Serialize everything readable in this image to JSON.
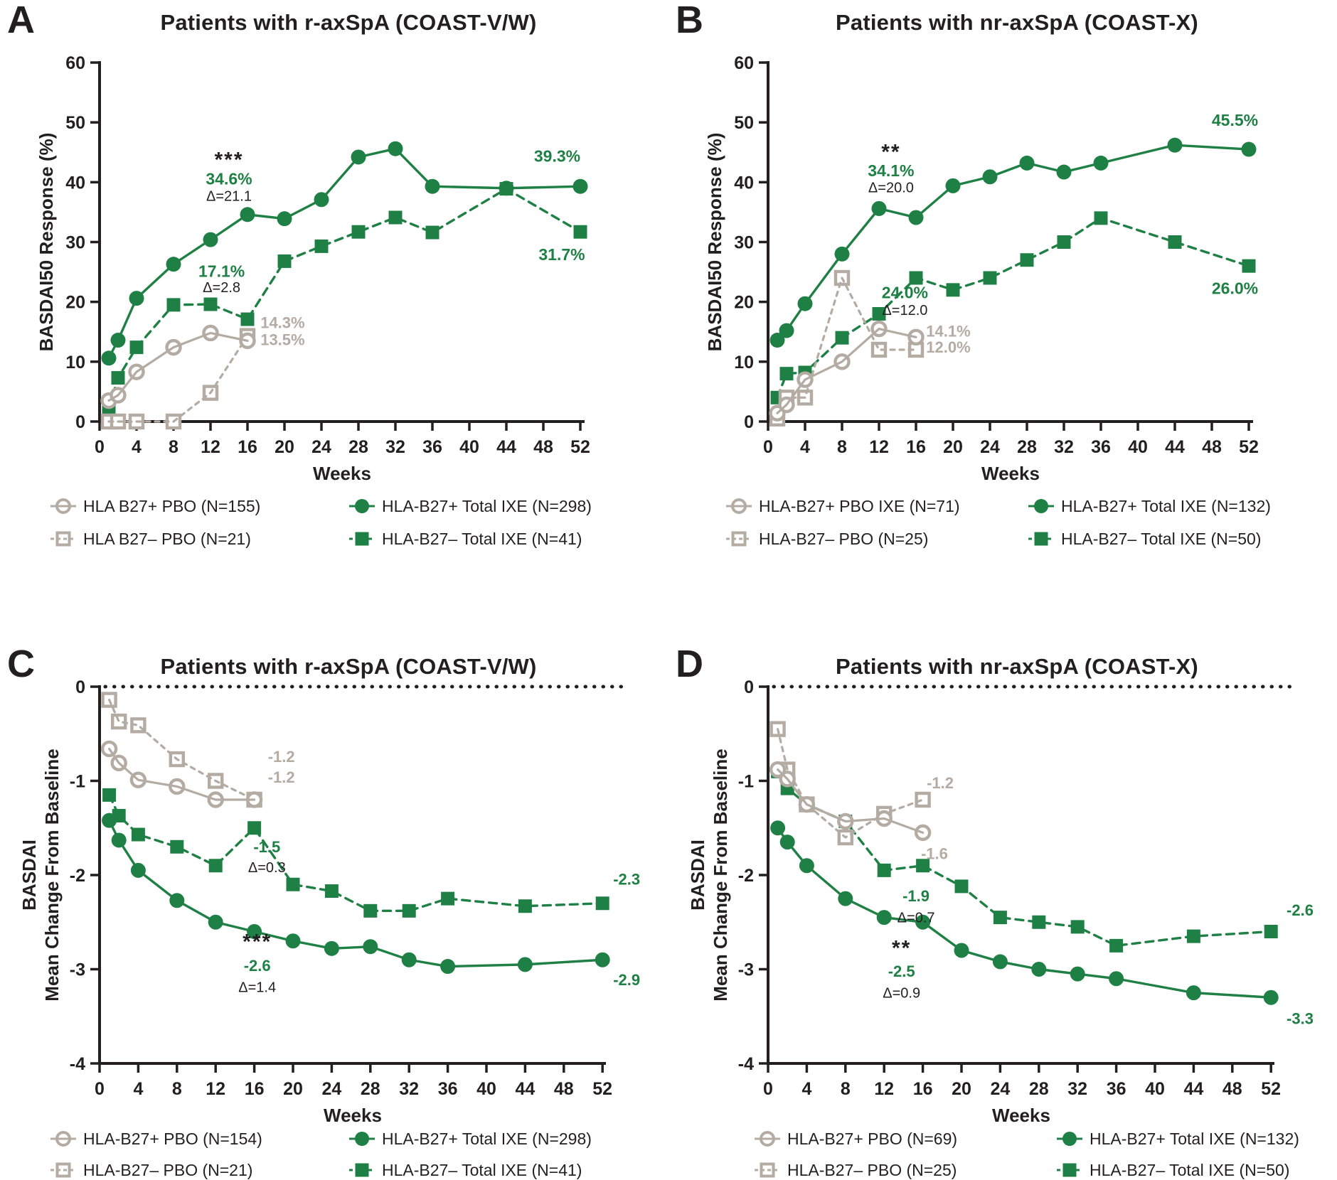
{
  "colors": {
    "green": "#1f8045",
    "gray": "#b4aba3",
    "black": "#231f20",
    "white": "#ffffff"
  },
  "chart_data": [
    {
      "type": "line",
      "panel": "A",
      "title": "Patients with r-axSpA (COAST-V/W)",
      "xlabel": "Weeks",
      "ylabel_lines": [
        "BASDAI50 Response (%)"
      ],
      "ylim": [
        0,
        60
      ],
      "yticks": [
        0,
        10,
        20,
        30,
        40,
        50,
        60
      ],
      "xticks": [
        0,
        4,
        8,
        12,
        16,
        20,
        24,
        28,
        32,
        36,
        40,
        44,
        48,
        52
      ],
      "zero_line_dotted": false,
      "legend_position": "below",
      "series": [
        {
          "name": "HLA B27+ PBO (N=155)",
          "style": "pbo_circle",
          "x": [
            1,
            2,
            4,
            8,
            12,
            16
          ],
          "y": [
            3.5,
            4.4,
            8.3,
            12.4,
            14.8,
            13.5
          ]
        },
        {
          "name": "HLA B27– PBO (N=21)",
          "style": "pbo_square",
          "x": [
            1,
            2,
            4,
            8,
            12,
            16
          ],
          "y": [
            0,
            0,
            0,
            0,
            4.8,
            14.3
          ]
        },
        {
          "name": "HLA-B27+ Total IXE (N=298)",
          "style": "ixe_circle",
          "x": [
            1,
            2,
            4,
            8,
            12,
            16,
            20,
            24,
            28,
            32,
            36,
            44,
            52
          ],
          "y": [
            10.6,
            13.6,
            20.6,
            26.3,
            30.4,
            34.6,
            33.9,
            37.1,
            44.2,
            45.6,
            39.3,
            39.0,
            39.3
          ]
        },
        {
          "name": "HLA-B27– Total IXE (N=41)",
          "style": "ixe_square",
          "x": [
            1,
            2,
            4,
            8,
            12,
            16,
            20,
            24,
            28,
            32,
            36,
            44,
            52
          ],
          "y": [
            2.2,
            7.3,
            12.4,
            19.5,
            19.6,
            17.1,
            26.8,
            29.3,
            31.7,
            34.1,
            31.6,
            38.9,
            31.7
          ]
        }
      ],
      "annotations": [
        {
          "text": "***",
          "x": 14,
          "y": 42.6,
          "color": "black",
          "bold": true,
          "size": 30
        },
        {
          "text": "34.6%",
          "x": 14,
          "y": 39.6,
          "color": "green",
          "bold": true,
          "size": 23
        },
        {
          "text": "Δ=21.1",
          "x": 14,
          "y": 36.9,
          "color": "black",
          "bold": false,
          "size": 20
        },
        {
          "text": "17.1%",
          "x": 13.2,
          "y": 24.2,
          "color": "green",
          "bold": true,
          "size": 23
        },
        {
          "text": "Δ=2.8",
          "x": 13.2,
          "y": 21.6,
          "color": "black",
          "bold": false,
          "size": 20
        },
        {
          "text": "14.3%",
          "x": 19.8,
          "y": 15.6,
          "color": "gray",
          "bold": true,
          "size": 22
        },
        {
          "text": "13.5%",
          "x": 19.8,
          "y": 12.8,
          "color": "gray",
          "bold": true,
          "size": 22
        },
        {
          "text": "39.3%",
          "x": 49.5,
          "y": 43.4,
          "color": "green",
          "bold": true,
          "size": 23
        },
        {
          "text": "31.7%",
          "x": 50.0,
          "y": 27.0,
          "color": "green",
          "bold": true,
          "size": 23
        }
      ]
    },
    {
      "type": "line",
      "panel": "B",
      "title": "Patients with nr-axSpA (COAST-X)",
      "xlabel": "Weeks",
      "ylabel_lines": [
        "BASDAI50 Response (%)"
      ],
      "ylim": [
        0,
        60
      ],
      "yticks": [
        0,
        10,
        20,
        30,
        40,
        50,
        60
      ],
      "xticks": [
        0,
        4,
        8,
        12,
        16,
        20,
        24,
        28,
        32,
        36,
        40,
        44,
        48,
        52
      ],
      "zero_line_dotted": false,
      "legend_position": "below",
      "series": [
        {
          "name": "HLA-B27+ PBO IXE (N=71)",
          "style": "pbo_circle",
          "x": [
            1,
            2,
            4,
            8,
            12,
            16
          ],
          "y": [
            1.4,
            2.8,
            7.0,
            10.0,
            15.5,
            14.1
          ]
        },
        {
          "name": "HLA-B27– PBO (N=25)",
          "style": "pbo_square",
          "x": [
            1,
            2,
            4,
            8,
            12,
            16
          ],
          "y": [
            0.5,
            4.0,
            4.0,
            24.0,
            12.0,
            12.0
          ]
        },
        {
          "name": "HLA-B27+ Total IXE (N=132)",
          "style": "ixe_circle",
          "x": [
            1,
            2,
            4,
            8,
            12,
            16,
            20,
            24,
            28,
            32,
            36,
            44,
            52
          ],
          "y": [
            13.6,
            15.2,
            19.7,
            28.0,
            35.6,
            34.1,
            39.4,
            40.9,
            43.2,
            41.7,
            43.2,
            46.2,
            45.5
          ]
        },
        {
          "name": "HLA-B27– Total IXE (N=50)",
          "style": "ixe_square",
          "x": [
            1,
            2,
            4,
            8,
            12,
            16,
            20,
            24,
            28,
            32,
            36,
            44,
            52
          ],
          "y": [
            4.0,
            8.0,
            8.2,
            14.0,
            18.0,
            24.0,
            22.0,
            24.0,
            27.0,
            30.0,
            34.0,
            30.0,
            26.0
          ]
        }
      ],
      "annotations": [
        {
          "text": "**",
          "x": 13.3,
          "y": 43.9,
          "color": "black",
          "bold": true,
          "size": 30
        },
        {
          "text": "34.1%",
          "x": 13.3,
          "y": 41.0,
          "color": "green",
          "bold": true,
          "size": 23
        },
        {
          "text": "Δ=20.0",
          "x": 13.3,
          "y": 38.3,
          "color": "black",
          "bold": false,
          "size": 20
        },
        {
          "text": "24.0%",
          "x": 14.8,
          "y": 20.6,
          "color": "green",
          "bold": true,
          "size": 23
        },
        {
          "text": "Δ=12.0",
          "x": 14.8,
          "y": 17.8,
          "color": "black",
          "bold": false,
          "size": 20
        },
        {
          "text": "14.1%",
          "x": 19.5,
          "y": 14.2,
          "color": "gray",
          "bold": true,
          "size": 22
        },
        {
          "text": "12.0%",
          "x": 19.5,
          "y": 11.5,
          "color": "gray",
          "bold": true,
          "size": 22
        },
        {
          "text": "45.5%",
          "x": 50.5,
          "y": 49.4,
          "color": "green",
          "bold": true,
          "size": 23
        },
        {
          "text": "26.0%",
          "x": 50.5,
          "y": 21.3,
          "color": "green",
          "bold": true,
          "size": 23
        }
      ]
    },
    {
      "type": "line",
      "panel": "C",
      "title": "Patients with r-axSpA (COAST-V/W)",
      "xlabel": "Weeks",
      "ylabel_lines": [
        "BASDAI",
        "Mean Change From Baseline"
      ],
      "ylim": [
        -4,
        0
      ],
      "yticks": [
        0,
        -1,
        -2,
        -3,
        -4
      ],
      "xticks": [
        0,
        4,
        8,
        12,
        16,
        20,
        24,
        28,
        32,
        36,
        40,
        44,
        48,
        52
      ],
      "zero_line_dotted": true,
      "legend_position": "below",
      "series": [
        {
          "name": "HLA-B27+ PBO (N=154)",
          "style": "pbo_circle",
          "x": [
            1,
            2,
            4,
            8,
            12,
            16
          ],
          "y": [
            -0.66,
            -0.81,
            -0.99,
            -1.06,
            -1.2,
            -1.2
          ]
        },
        {
          "name": "HLA-B27– PBO (N=21)",
          "style": "pbo_square",
          "x": [
            1,
            2,
            4,
            8,
            12,
            16
          ],
          "y": [
            -0.14,
            -0.37,
            -0.41,
            -0.77,
            -1.0,
            -1.2
          ]
        },
        {
          "name": "HLA-B27+ Total IXE (N=298)",
          "style": "ixe_circle",
          "x": [
            1,
            2,
            4,
            8,
            12,
            16,
            20,
            24,
            28,
            32,
            36,
            44,
            52
          ],
          "y": [
            -1.42,
            -1.63,
            -1.95,
            -2.27,
            -2.5,
            -2.6,
            -2.7,
            -2.78,
            -2.76,
            -2.9,
            -2.97,
            -2.95,
            -2.9
          ]
        },
        {
          "name": "HLA-B27– Total IXE (N=41)",
          "style": "ixe_square",
          "x": [
            1,
            2,
            4,
            8,
            12,
            16,
            20,
            24,
            28,
            32,
            36,
            44,
            52
          ],
          "y": [
            -1.15,
            -1.37,
            -1.57,
            -1.7,
            -1.9,
            -1.5,
            -2.1,
            -2.17,
            -2.38,
            -2.38,
            -2.25,
            -2.33,
            -2.3
          ]
        }
      ],
      "annotations": [
        {
          "text": "-1.2",
          "x": 18.8,
          "y": -0.8,
          "color": "gray",
          "bold": true,
          "size": 22
        },
        {
          "text": "-1.2",
          "x": 18.8,
          "y": -1.02,
          "color": "gray",
          "bold": true,
          "size": 22
        },
        {
          "text": "-1.5",
          "x": 17.3,
          "y": -1.76,
          "color": "green",
          "bold": true,
          "size": 22
        },
        {
          "text": "Δ=0.3",
          "x": 17.3,
          "y": -1.97,
          "color": "black",
          "bold": false,
          "size": 20
        },
        {
          "text": "***",
          "x": 16.3,
          "y": -2.78,
          "color": "black",
          "bold": true,
          "size": 30
        },
        {
          "text": "-2.6",
          "x": 16.3,
          "y": -3.02,
          "color": "green",
          "bold": true,
          "size": 22
        },
        {
          "text": "Δ=1.4",
          "x": 16.3,
          "y": -3.24,
          "color": "black",
          "bold": false,
          "size": 20
        },
        {
          "text": "-2.3",
          "x": 54.5,
          "y": -2.1,
          "color": "green",
          "bold": true,
          "size": 22
        },
        {
          "text": "-2.9",
          "x": 54.5,
          "y": -3.17,
          "color": "green",
          "bold": true,
          "size": 22
        }
      ]
    },
    {
      "type": "line",
      "panel": "D",
      "title": "Patients with nr-axSpA (COAST-X)",
      "xlabel": "Weeks",
      "ylabel_lines": [
        "BASDAI",
        "Mean Change From Baseline"
      ],
      "ylim": [
        -4,
        0
      ],
      "yticks": [
        0,
        -1,
        -2,
        -3,
        -4
      ],
      "xticks": [
        0,
        4,
        8,
        12,
        16,
        20,
        24,
        28,
        32,
        36,
        40,
        44,
        48,
        52
      ],
      "zero_line_dotted": true,
      "legend_position": "below",
      "series": [
        {
          "name": "HLA-B27+ PBO (N=69)",
          "style": "pbo_circle",
          "x": [
            1,
            2,
            4,
            8,
            12,
            16
          ],
          "y": [
            -0.88,
            -0.98,
            -1.25,
            -1.43,
            -1.4,
            -1.55
          ]
        },
        {
          "name": "HLA-B27– PBO (N=25)",
          "style": "pbo_square",
          "x": [
            1,
            2,
            4,
            8,
            12,
            16
          ],
          "y": [
            -0.45,
            -0.88,
            -1.25,
            -1.6,
            -1.35,
            -1.2
          ]
        },
        {
          "name": "HLA-B27+ Total IXE (N=132)",
          "style": "ixe_circle",
          "x": [
            1,
            2,
            4,
            8,
            12,
            16,
            20,
            24,
            28,
            32,
            36,
            44,
            52
          ],
          "y": [
            -1.5,
            -1.65,
            -1.9,
            -2.25,
            -2.45,
            -2.5,
            -2.8,
            -2.92,
            -3.0,
            -3.05,
            -3.1,
            -3.25,
            -3.3
          ]
        },
        {
          "name": "HLA-B27– Total IXE (N=50)",
          "style": "ixe_square",
          "x": [
            1,
            2,
            4,
            8,
            12,
            16,
            20,
            24,
            28,
            32,
            36,
            44,
            52
          ],
          "y": [
            -0.9,
            -1.08,
            -1.25,
            -1.43,
            -1.95,
            -1.9,
            -2.12,
            -2.45,
            -2.5,
            -2.55,
            -2.75,
            -2.65,
            -2.6
          ]
        }
      ],
      "annotations": [
        {
          "text": "-1.2",
          "x": 17.8,
          "y": -1.08,
          "color": "gray",
          "bold": true,
          "size": 22
        },
        {
          "text": "-1.6",
          "x": 17.2,
          "y": -1.83,
          "color": "gray",
          "bold": true,
          "size": 22
        },
        {
          "text": "-1.9",
          "x": 15.3,
          "y": -2.28,
          "color": "green",
          "bold": true,
          "size": 22
        },
        {
          "text": "Δ=0.7",
          "x": 15.3,
          "y": -2.5,
          "color": "black",
          "bold": false,
          "size": 20
        },
        {
          "text": "**",
          "x": 13.8,
          "y": -2.85,
          "color": "black",
          "bold": true,
          "size": 30
        },
        {
          "text": "-2.5",
          "x": 13.8,
          "y": -3.08,
          "color": "green",
          "bold": true,
          "size": 22
        },
        {
          "text": "Δ=0.9",
          "x": 13.8,
          "y": -3.3,
          "color": "black",
          "bold": false,
          "size": 20
        },
        {
          "text": "-2.6",
          "x": 55.0,
          "y": -2.43,
          "color": "green",
          "bold": true,
          "size": 22
        },
        {
          "text": "-3.3",
          "x": 55.0,
          "y": -3.58,
          "color": "green",
          "bold": true,
          "size": 22
        }
      ]
    }
  ]
}
